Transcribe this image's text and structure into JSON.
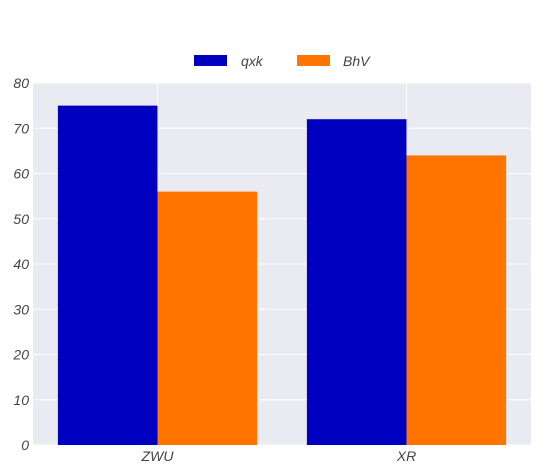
{
  "chart_data": {
    "type": "bar",
    "categories": [
      "ZWU",
      "XR"
    ],
    "series": [
      {
        "name": "qxk",
        "values": [
          75,
          72
        ],
        "color": "#0000c0"
      },
      {
        "name": "BhV",
        "values": [
          56,
          64
        ],
        "color": "#ff7500"
      }
    ],
    "ylim": [
      0,
      80
    ],
    "yticks": [
      0,
      10,
      20,
      30,
      40,
      50,
      60,
      70,
      80
    ],
    "grid": true,
    "legend_position": "top-center",
    "plot_background": "#eaeaf2",
    "grid_color": "#ffffff"
  }
}
